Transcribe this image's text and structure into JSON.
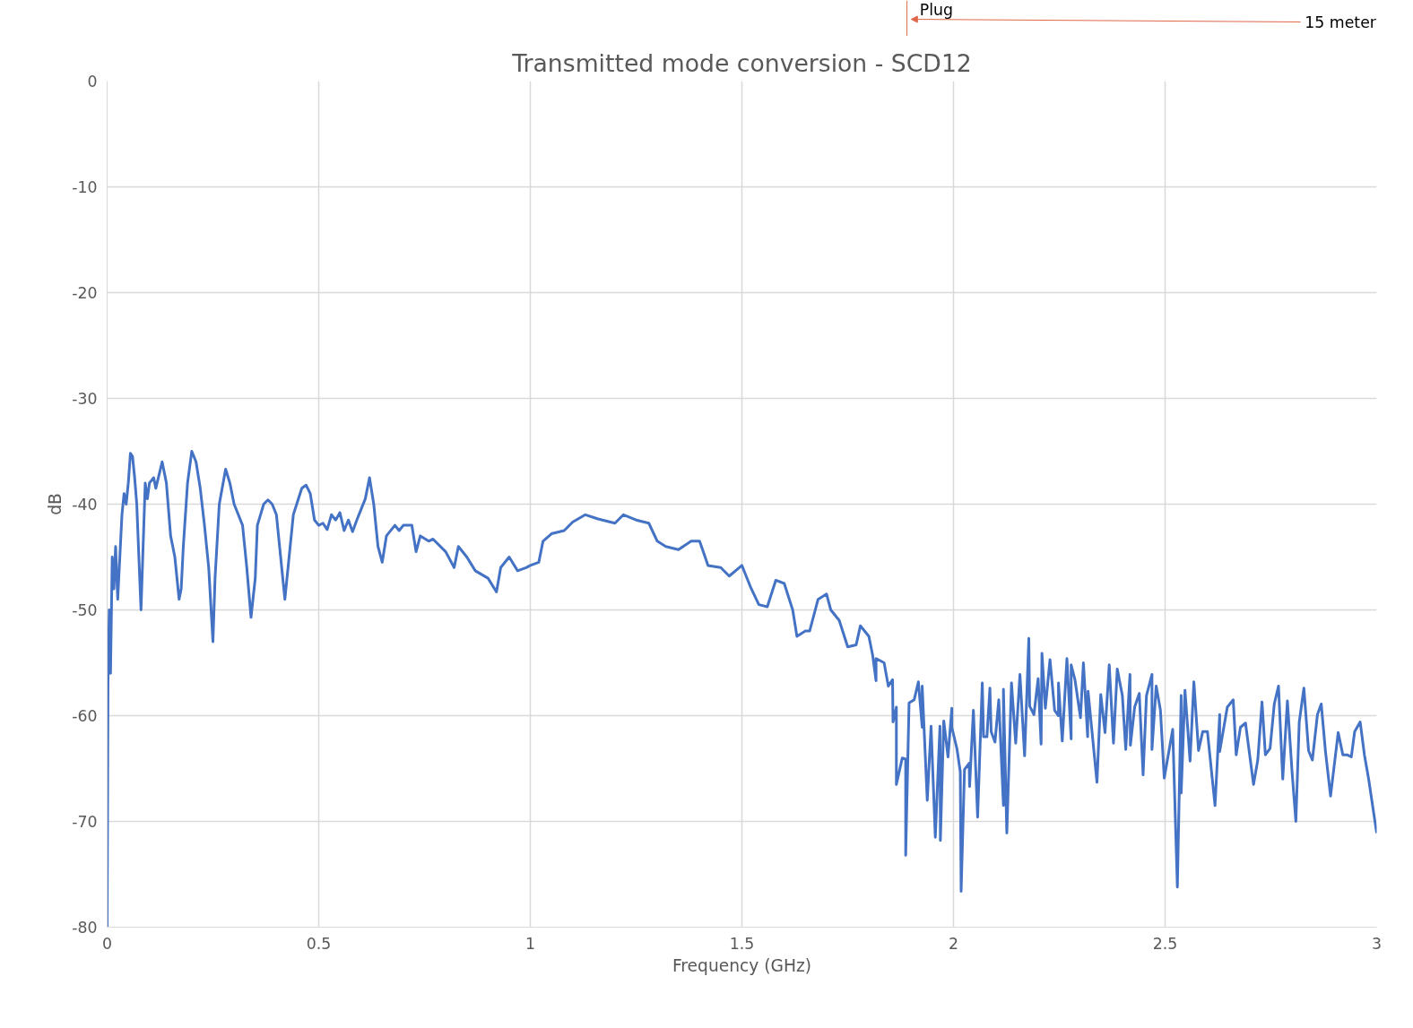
{
  "chart_data": {
    "type": "line",
    "title": "Transmitted mode conversion - SCD12",
    "xlabel": "Frequency (GHz)",
    "ylabel": "dB",
    "annotations": [
      "Plug",
      "15 meter"
    ],
    "xlim": [
      0,
      3
    ],
    "ylim": [
      -80,
      0
    ],
    "xticks": [
      0,
      0.5,
      1,
      1.5,
      2,
      2.5,
      3
    ],
    "yticks": [
      0,
      -10,
      -20,
      -30,
      -40,
      -50,
      -60,
      -70,
      -80
    ],
    "grid": true,
    "marker": "none",
    "line_style": "solid",
    "series": [
      {
        "color": "#4472c4",
        "x": [
          0,
          0.002,
          0.005,
          0.008,
          0.012,
          0.016,
          0.02,
          0.025,
          0.03,
          0.035,
          0.04,
          0.045,
          0.05,
          0.055,
          0.06,
          0.065,
          0.07,
          0.075,
          0.08,
          0.085,
          0.09,
          0.095,
          0.1,
          0.11,
          0.115,
          0.13,
          0.14,
          0.15,
          0.16,
          0.17,
          0.175,
          0.18,
          0.19,
          0.2,
          0.21,
          0.22,
          0.23,
          0.24,
          0.25,
          0.255,
          0.265,
          0.28,
          0.29,
          0.3,
          0.31,
          0.32,
          0.33,
          0.34,
          0.35,
          0.355,
          0.37,
          0.38,
          0.39,
          0.4,
          0.41,
          0.42,
          0.43,
          0.44,
          0.46,
          0.47,
          0.48,
          0.49,
          0.5,
          0.51,
          0.52,
          0.53,
          0.54,
          0.55,
          0.56,
          0.57,
          0.58,
          0.59,
          0.6,
          0.61,
          0.62,
          0.63,
          0.64,
          0.65,
          0.66,
          0.68,
          0.69,
          0.7,
          0.72,
          0.73,
          0.74,
          0.76,
          0.77,
          0.8,
          0.82,
          0.83,
          0.85,
          0.87,
          0.9,
          0.92,
          0.93,
          0.95,
          0.97,
          0.99,
          1.0,
          1.02,
          1.03,
          1.05,
          1.08,
          1.1,
          1.13,
          1.16,
          1.2,
          1.22,
          1.25,
          1.28,
          1.3,
          1.32,
          1.35,
          1.38,
          1.4,
          1.42,
          1.45,
          1.47,
          1.5,
          1.52,
          1.54,
          1.56,
          1.58,
          1.6,
          1.62,
          1.63,
          1.65,
          1.66,
          1.68,
          1.7,
          1.71,
          1.73,
          1.75,
          1.77,
          1.78,
          1.8,
          1.809,
          1.817,
          1.817,
          1.836,
          1.846,
          1.856,
          1.857,
          1.865,
          1.865,
          1.879,
          1.887,
          1.887,
          1.895,
          1.907,
          1.917,
          1.926,
          1.926,
          1.938,
          1.947,
          1.957,
          1.968,
          1.969,
          1.977,
          1.987,
          1.996,
          1.996,
          2.008,
          2.016,
          2.018,
          2.026,
          2.037,
          2.038,
          2.047,
          2.057,
          2.068,
          2.071,
          2.079,
          2.086,
          2.089,
          2.098,
          2.107,
          2.118,
          2.118,
          2.126,
          2.137,
          2.147,
          2.157,
          2.168,
          2.178,
          2.18,
          2.19,
          2.2,
          2.207,
          2.209,
          2.217,
          2.228,
          2.239,
          2.248,
          2.248,
          2.257,
          2.268,
          2.278,
          2.278,
          2.287,
          2.3,
          2.307,
          2.317,
          2.318,
          2.339,
          2.348,
          2.358,
          2.368,
          2.378,
          2.387,
          2.399,
          2.407,
          2.417,
          2.418,
          2.428,
          2.439,
          2.448,
          2.456,
          2.469,
          2.469,
          2.479,
          2.489,
          2.498,
          2.518,
          2.529,
          2.538,
          2.538,
          2.547,
          2.559,
          2.568,
          2.579,
          2.589,
          2.6,
          2.618,
          2.629,
          2.629,
          2.647,
          2.661,
          2.668,
          2.678,
          2.69,
          2.709,
          2.719,
          2.729,
          2.737,
          2.748,
          2.758,
          2.768,
          2.778,
          2.789,
          2.8,
          2.809,
          2.817,
          2.828,
          2.839,
          2.848,
          2.86,
          2.869,
          2.879,
          2.891,
          2.909,
          2.92,
          2.93,
          2.94,
          2.948,
          2.961,
          2.971,
          2.981,
          3.0
        ],
        "values": [
          -80,
          -57,
          -50,
          -56,
          -45,
          -48,
          -44,
          -49,
          -45,
          -41,
          -39,
          -40,
          -38,
          -35.2,
          -35.5,
          -37.5,
          -40,
          -45,
          -50,
          -44,
          -38,
          -39.5,
          -38,
          -37.5,
          -38.5,
          -36,
          -38,
          -43,
          -45,
          -49,
          -48,
          -44,
          -38,
          -35,
          -36,
          -38.5,
          -42,
          -46,
          -53,
          -47,
          -40,
          -36.7,
          -38,
          -40,
          -41,
          -42,
          -46,
          -50.7,
          -47,
          -42,
          -40,
          -39.6,
          -40,
          -41,
          -45,
          -49,
          -45,
          -41,
          -38.5,
          -38.2,
          -39,
          -41.5,
          -42,
          -41.8,
          -42.4,
          -41,
          -41.5,
          -40.8,
          -42.5,
          -41.5,
          -42.6,
          -41.5,
          -40.5,
          -39.5,
          -37.5,
          -40,
          -44,
          -45.5,
          -43,
          -42,
          -42.5,
          -42,
          -42,
          -44.5,
          -43,
          -43.5,
          -43.3,
          -44.5,
          -46,
          -44,
          -45,
          -46.3,
          -47,
          -48.3,
          -46,
          -45,
          -46.3,
          -46,
          -45.8,
          -45.5,
          -43.5,
          -42.8,
          -42.5,
          -41.7,
          -41,
          -41.4,
          -41.8,
          -41,
          -41.5,
          -41.8,
          -43.5,
          -44,
          -44.3,
          -43.5,
          -43.5,
          -45.8,
          -46,
          -46.8,
          -45.8,
          -47.8,
          -49.5,
          -49.7,
          -47.2,
          -47.5,
          -50,
          -52.5,
          -52,
          -52,
          -49,
          -48.5,
          -50,
          -51,
          -53.5,
          -53.3,
          -51.5,
          -52.5,
          -54.3,
          -56.7,
          -54.6,
          -55,
          -57.2,
          -56.6,
          -60.6,
          -59.2,
          -66.5,
          -64,
          -64.1,
          -73.2,
          -58.8,
          -58.5,
          -56.8,
          -61.1,
          -57.2,
          -68,
          -61,
          -71.5,
          -61,
          -71.8,
          -60.5,
          -63.9,
          -59.3,
          -61.1,
          -63.1,
          -65.3,
          -76.6,
          -65.1,
          -64.5,
          -66.7,
          -59.5,
          -69.6,
          -56.9,
          -62,
          -62,
          -57.4,
          -61.5,
          -62.5,
          -58.5,
          -68.5,
          -57.5,
          -71.1,
          -56.9,
          -62.6,
          -56.1,
          -63.8,
          -52.7,
          -59.1,
          -59.9,
          -56.5,
          -62.7,
          -54.1,
          -59.3,
          -54.7,
          -59.5,
          -60,
          -56.9,
          -62.4,
          -54.6,
          -62.2,
          -55.2,
          -56.6,
          -60.2,
          -55,
          -62,
          -57.7,
          -66.3,
          -58,
          -61.6,
          -55.2,
          -62.6,
          -55.6,
          -58.1,
          -63.2,
          -56.1,
          -62.8,
          -59.2,
          -57.9,
          -65.6,
          -58.1,
          -56.1,
          -63.2,
          -57.2,
          -59.5,
          -65.9,
          -61.3,
          -76.2,
          -58.1,
          -67.3,
          -57.6,
          -64.3,
          -56.8,
          -63.3,
          -61.5,
          -61.5,
          -68.5,
          -59.9,
          -63.4,
          -59.2,
          -58.5,
          -63.7,
          -61.1,
          -60.7,
          -66.5,
          -64.2,
          -58.7,
          -63.7,
          -63.1,
          -58.9,
          -57.2,
          -66,
          -58.6,
          -65.3,
          -70,
          -60.6,
          -57.4,
          -63.3,
          -64.2,
          -59.9,
          -58.9,
          -63.4,
          -67.6,
          -61.6,
          -63.7,
          -63.7,
          -63.9,
          -61.5,
          -60.6,
          -63.7,
          -66,
          -71.1
        ]
      }
    ]
  }
}
